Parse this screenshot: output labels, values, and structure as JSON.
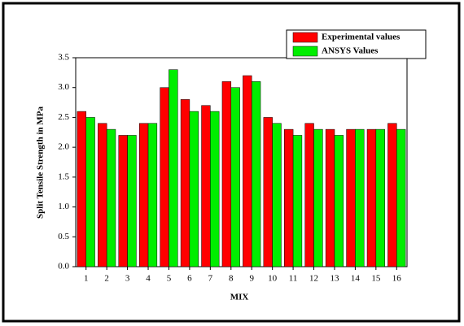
{
  "chart_data": {
    "type": "bar",
    "xlabel": "MIX",
    "ylabel": "Split Tensile Strength in MPa",
    "categories": [
      "1",
      "2",
      "3",
      "4",
      "5",
      "6",
      "7",
      "8",
      "9",
      "10",
      "11",
      "12",
      "13",
      "14",
      "15",
      "16"
    ],
    "series": [
      {
        "name": "Experimental values",
        "color": "#ff0000",
        "values": [
          2.6,
          2.4,
          2.2,
          2.4,
          3.0,
          2.8,
          2.7,
          3.1,
          3.2,
          2.5,
          2.3,
          2.4,
          2.3,
          2.3,
          2.3,
          2.4
        ]
      },
      {
        "name": "ANSYS Values",
        "color": "#00ee00",
        "values": [
          2.5,
          2.3,
          2.2,
          2.4,
          3.3,
          2.6,
          2.6,
          3.0,
          3.1,
          2.4,
          2.2,
          2.3,
          2.2,
          2.3,
          2.3,
          2.3
        ]
      }
    ],
    "ylim": [
      0,
      3.5
    ],
    "yticks": [
      {
        "value": 0,
        "label": "0.0"
      },
      0.5,
      {
        "value": 1,
        "label": "1.0"
      },
      1.5,
      {
        "value": 2,
        "label": "2.0"
      },
      2.5,
      {
        "value": 3,
        "label": "3.0"
      },
      3.5
    ],
    "legend": "top-right"
  }
}
